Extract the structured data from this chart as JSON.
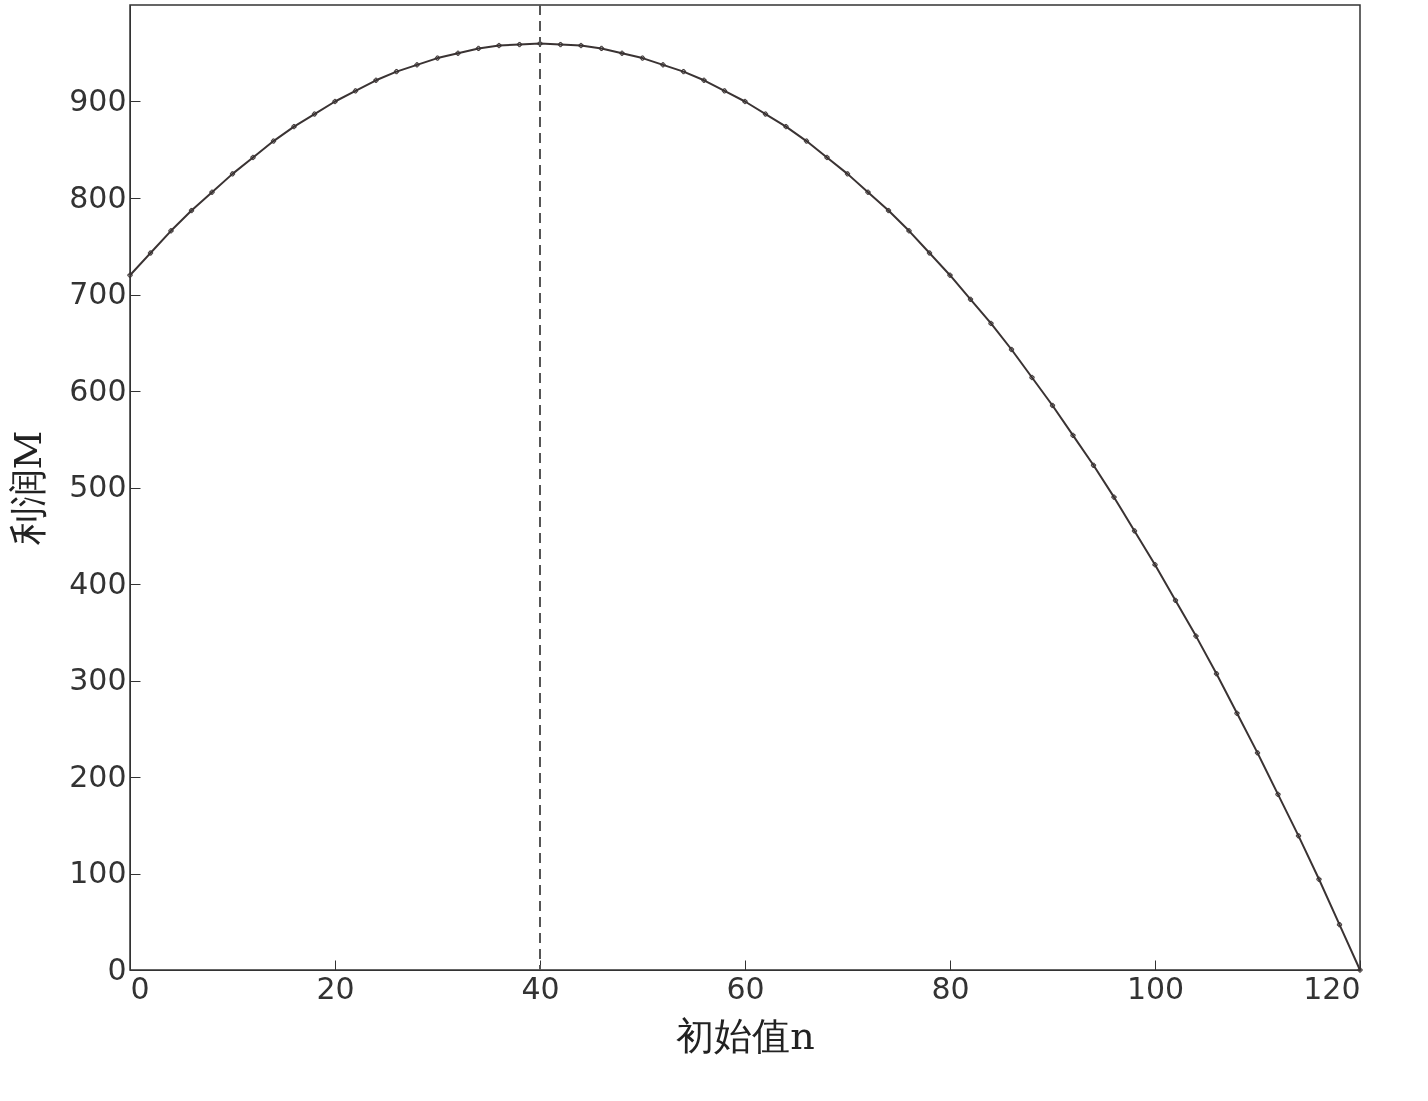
{
  "chart_data": {
    "type": "line",
    "xlabel": "初始值n",
    "ylabel": "利润M",
    "x": [
      0,
      2,
      4,
      6,
      8,
      10,
      12,
      14,
      16,
      18,
      20,
      22,
      24,
      26,
      28,
      30,
      32,
      34,
      36,
      38,
      40,
      42,
      44,
      46,
      48,
      50,
      52,
      54,
      56,
      58,
      60,
      62,
      64,
      66,
      68,
      70,
      72,
      74,
      76,
      78,
      80,
      82,
      84,
      86,
      88,
      90,
      92,
      94,
      96,
      98,
      100,
      102,
      104,
      106,
      108,
      110,
      112,
      114,
      116,
      118,
      120
    ],
    "series": [
      {
        "color": "#3a3333",
        "values": [
          720,
          743,
          766,
          787,
          806,
          825,
          842,
          859,
          874,
          887,
          900,
          911,
          922,
          931,
          938,
          945,
          950,
          955,
          958,
          959,
          960,
          959,
          958,
          955,
          950,
          945,
          938,
          931,
          922,
          911,
          900,
          887,
          874,
          859,
          842,
          825,
          806,
          787,
          766,
          743,
          720,
          695,
          670,
          643,
          614,
          585,
          554,
          523,
          490,
          455,
          420,
          383,
          346,
          307,
          266,
          225,
          182,
          139,
          94,
          47,
          0
        ]
      }
    ],
    "xlim": [
      0,
      120
    ],
    "xticks": [
      0,
      20,
      40,
      60,
      80,
      100,
      120
    ],
    "ylim": [
      0,
      1000
    ],
    "yticks": [
      0,
      100,
      200,
      300,
      400,
      500,
      600,
      700,
      800,
      900
    ],
    "ref_lines": [
      {
        "axis": "x",
        "value": 40,
        "color": "#555555",
        "line_style": "dashed"
      }
    ],
    "marker": "cross",
    "line_style": "solid",
    "grid": false
  }
}
